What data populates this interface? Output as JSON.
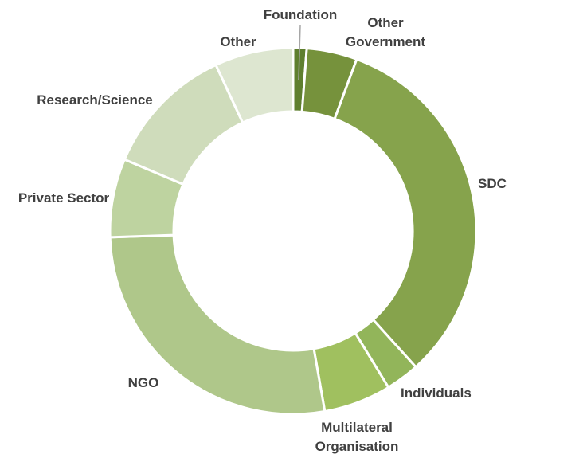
{
  "chart_data": {
    "type": "pie",
    "variant": "donut",
    "title": "",
    "legend": "none",
    "slices": [
      {
        "label": "Foundation",
        "value": 1.2,
        "color": "#5f7f2f"
      },
      {
        "label": "Other Government",
        "value": 4.5,
        "color": "#76923c"
      },
      {
        "label": "SDC",
        "value": 33.0,
        "color": "#86a34c"
      },
      {
        "label": "Individuals",
        "value": 3.0,
        "color": "#92b55a"
      },
      {
        "label": "Multilateral Organisation",
        "value": 6.0,
        "color": "#a0c05f"
      },
      {
        "label": "NGO",
        "value": 27.5,
        "color": "#afc78a"
      },
      {
        "label": "Private Sector",
        "value": 7.0,
        "color": "#bed3a0"
      },
      {
        "label": "Research/Science",
        "value": 11.8,
        "color": "#cfdcbb"
      },
      {
        "label": "Other",
        "value": 7.0,
        "color": "#dde6d0"
      }
    ],
    "label_lines": {
      "Foundation": [
        "Foundation"
      ],
      "Other Government": [
        "Other",
        "Government"
      ],
      "SDC": [
        "SDC"
      ],
      "Individuals": [
        "Individuals"
      ],
      "Multilateral Organisation": [
        "Multilateral",
        "Organisation"
      ],
      "NGO": [
        "NGO"
      ],
      "Private Sector": [
        "Private Sector"
      ],
      "Research/Science": [
        "Research/Science"
      ],
      "Other": [
        "Other"
      ]
    }
  }
}
